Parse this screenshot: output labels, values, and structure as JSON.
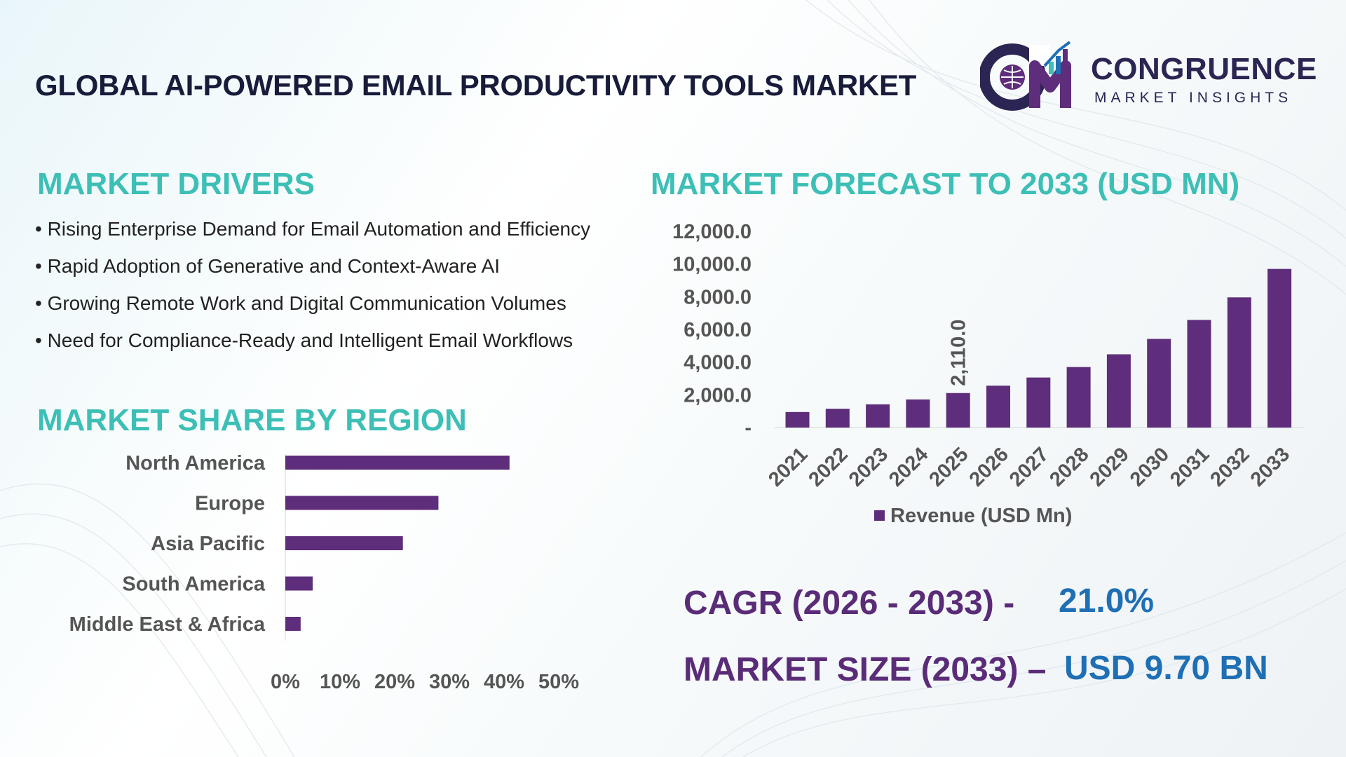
{
  "header": {
    "title": "GLOBAL AI-POWERED EMAIL PRODUCTIVITY TOOLS MARKET",
    "logo_name": "CONGRUENCE",
    "logo_tagline": "MARKET INSIGHTS"
  },
  "drivers": {
    "title": "MARKET DRIVERS",
    "items": [
      "• Rising Enterprise Demand for Email Automation and Efficiency",
      "• Rapid Adoption of Generative and Context-Aware AI",
      "• Growing Remote Work and Digital Communication Volumes",
      "• Need for Compliance-Ready and Intelligent Email Workflows"
    ]
  },
  "region": {
    "title": "MARKET SHARE BY REGION"
  },
  "forecast": {
    "title": "MARKET FORECAST TO 2033 (USD MN)"
  },
  "stats": {
    "cagr_label": "CAGR (2026 - 2033) -",
    "cagr_value": "21.0%",
    "size_label": "MARKET SIZE (2033) –",
    "size_value": "USD 9.70 BN"
  },
  "colors": {
    "bar": "#5e2d7b",
    "accent_teal": "#3dbfb6",
    "stat_purple": "#5a2c78",
    "stat_blue": "#1f6fb5",
    "title_navy": "#181c3a"
  },
  "chart_data": [
    {
      "type": "bar",
      "orientation": "horizontal",
      "categories": [
        "North America",
        "Europe",
        "Asia Pacific",
        "South America",
        "Middle East & Africa"
      ],
      "values": [
        41,
        28,
        21.5,
        5,
        2.8
      ],
      "xlim": [
        0,
        50
      ],
      "x_ticks": [
        "0%",
        "10%",
        "20%",
        "30%",
        "40%",
        "50%"
      ],
      "grid": false,
      "legend": "none"
    },
    {
      "type": "bar",
      "categories": [
        "2021",
        "2022",
        "2023",
        "2024",
        "2025",
        "2026",
        "2027",
        "2028",
        "2029",
        "2030",
        "2031",
        "2032",
        "2033"
      ],
      "series": [
        {
          "name": "Revenue (USD Mn)",
          "values": [
            950,
            1150,
            1420,
            1720,
            2110,
            2560,
            3060,
            3700,
            4480,
            5420,
            6580,
            7960,
            9700
          ]
        }
      ],
      "data_labels": [
        {
          "index": 4,
          "text": "2,110.0"
        }
      ],
      "ylim": [
        0,
        12000
      ],
      "y_ticks": [
        "-",
        "2,000.0",
        "4,000.0",
        "6,000.0",
        "8,000.0",
        "10,000.0",
        "12,000.0"
      ],
      "grid": false,
      "legend": "bottom"
    }
  ]
}
